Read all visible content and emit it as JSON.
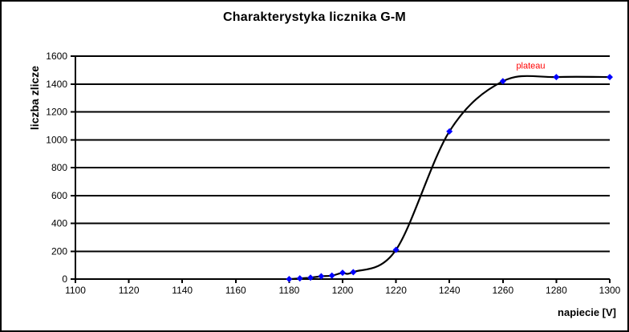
{
  "chart": {
    "title": "Charakterystyka licznika G-M",
    "y_axis_label": "liczba zlicze",
    "x_axis_label": "napiecie [V]"
  },
  "chart_data": {
    "type": "line",
    "title": "Charakterystyka licznika G-M",
    "xlabel": "napiecie [V]",
    "ylabel": "liczba zlicze",
    "x": [
      1180,
      1184,
      1188,
      1192,
      1196,
      1200,
      1204,
      1220,
      1240,
      1260,
      1280,
      1300
    ],
    "y": [
      0,
      5,
      10,
      20,
      25,
      45,
      50,
      210,
      1060,
      1420,
      1450,
      1450
    ],
    "xlim": [
      1100,
      1300
    ],
    "ylim": [
      0,
      1600
    ],
    "x_ticks": [
      1100,
      1120,
      1140,
      1160,
      1180,
      1200,
      1220,
      1240,
      1260,
      1280,
      1300
    ],
    "y_ticks": [
      0,
      200,
      400,
      600,
      800,
      1000,
      1200,
      1400,
      1600
    ],
    "grid": "horizontal",
    "legend": "none",
    "line_color": "#000000",
    "marker": "diamond",
    "marker_color": "#0000FF",
    "annotations": [
      {
        "text": "plateau",
        "x": 1265,
        "y": 1510,
        "color": "#FF0000"
      }
    ]
  }
}
